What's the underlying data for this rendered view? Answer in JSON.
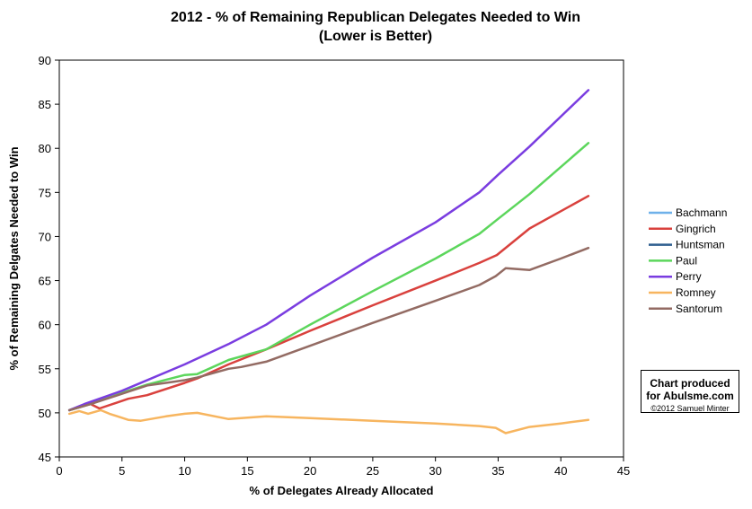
{
  "chart_data": {
    "type": "line",
    "title": "2012 - % of Remaining Republican Delegates Needed to Win",
    "subtitle": "(Lower is Better)",
    "xlabel": "% of Delegates Already Allocated",
    "ylabel": "% of Remaining Delgates Needed to Win",
    "xlim": [
      0,
      45
    ],
    "ylim": [
      45,
      90
    ],
    "xticks": [
      0,
      5,
      10,
      15,
      20,
      25,
      30,
      35,
      40,
      45
    ],
    "yticks": [
      45,
      50,
      55,
      60,
      65,
      70,
      75,
      80,
      85,
      90
    ],
    "grid": false,
    "legend_position": "right",
    "series": [
      {
        "name": "Bachmann",
        "color": "#6fb1ea",
        "points": [
          [
            0.8,
            50.3
          ],
          [
            1.2,
            50.5
          ]
        ]
      },
      {
        "name": "Gingrich",
        "color": "#d9413d",
        "points": [
          [
            0.8,
            50.3
          ],
          [
            2.5,
            51.0
          ],
          [
            3.2,
            50.5
          ],
          [
            5.5,
            51.6
          ],
          [
            7.0,
            52.0
          ],
          [
            10.0,
            53.4
          ],
          [
            11.0,
            53.9
          ],
          [
            13.5,
            55.5
          ],
          [
            16.5,
            57.2
          ],
          [
            20.0,
            59.3
          ],
          [
            25.0,
            62.2
          ],
          [
            30.0,
            65.0
          ],
          [
            33.5,
            67.0
          ],
          [
            34.9,
            67.9
          ],
          [
            37.5,
            70.9
          ],
          [
            42.2,
            74.6
          ]
        ]
      },
      {
        "name": "Huntsman",
        "color": "#2f5f8f",
        "points": [
          [
            0.8,
            50.3
          ],
          [
            1.2,
            50.5
          ]
        ]
      },
      {
        "name": "Paul",
        "color": "#5cd65c",
        "points": [
          [
            0.8,
            50.3
          ],
          [
            2.5,
            51.0
          ],
          [
            5.5,
            52.5
          ],
          [
            7.0,
            53.2
          ],
          [
            10.0,
            54.3
          ],
          [
            11.0,
            54.4
          ],
          [
            13.5,
            56.0
          ],
          [
            16.5,
            57.2
          ],
          [
            20.0,
            60.0
          ],
          [
            25.0,
            63.8
          ],
          [
            30.0,
            67.5
          ],
          [
            33.5,
            70.3
          ],
          [
            35.0,
            72.0
          ],
          [
            37.5,
            74.8
          ],
          [
            42.2,
            80.6
          ]
        ]
      },
      {
        "name": "Perry",
        "color": "#7a3de0",
        "points": [
          [
            0.8,
            50.3
          ],
          [
            2.0,
            51.0
          ],
          [
            5.0,
            52.5
          ],
          [
            10.0,
            55.5
          ],
          [
            13.5,
            57.8
          ],
          [
            16.5,
            60.0
          ],
          [
            20.0,
            63.3
          ],
          [
            25.0,
            67.6
          ],
          [
            30.0,
            71.6
          ],
          [
            33.5,
            75.0
          ],
          [
            35.0,
            77.0
          ],
          [
            37.5,
            80.2
          ],
          [
            42.2,
            86.6
          ]
        ]
      },
      {
        "name": "Romney",
        "color": "#f7b55f",
        "points": [
          [
            0.8,
            49.9
          ],
          [
            1.6,
            50.2
          ],
          [
            2.3,
            49.9
          ],
          [
            3.3,
            50.3
          ],
          [
            4.0,
            49.9
          ],
          [
            5.5,
            49.2
          ],
          [
            6.5,
            49.1
          ],
          [
            8.5,
            49.6
          ],
          [
            10.0,
            49.9
          ],
          [
            11.0,
            50.0
          ],
          [
            13.5,
            49.3
          ],
          [
            14.5,
            49.4
          ],
          [
            16.5,
            49.6
          ],
          [
            20.0,
            49.4
          ],
          [
            25.0,
            49.1
          ],
          [
            30.0,
            48.8
          ],
          [
            33.5,
            48.5
          ],
          [
            34.8,
            48.3
          ],
          [
            35.6,
            47.7
          ],
          [
            37.5,
            48.4
          ],
          [
            40.0,
            48.8
          ],
          [
            42.2,
            49.2
          ]
        ]
      },
      {
        "name": "Santorum",
        "color": "#936b63",
        "points": [
          [
            0.8,
            50.3
          ],
          [
            2.5,
            51.0
          ],
          [
            5.5,
            52.4
          ],
          [
            7.0,
            53.1
          ],
          [
            8.5,
            53.4
          ],
          [
            10.0,
            53.7
          ],
          [
            11.0,
            54.0
          ],
          [
            13.5,
            55.0
          ],
          [
            14.5,
            55.2
          ],
          [
            16.5,
            55.8
          ],
          [
            20.0,
            57.6
          ],
          [
            25.0,
            60.2
          ],
          [
            30.0,
            62.7
          ],
          [
            33.5,
            64.5
          ],
          [
            34.8,
            65.5
          ],
          [
            35.6,
            66.4
          ],
          [
            37.5,
            66.2
          ],
          [
            40.0,
            67.5
          ],
          [
            42.2,
            68.7
          ]
        ]
      }
    ]
  },
  "credit": {
    "line1": "Chart produced",
    "line2": "for Abulsme.com",
    "line3": "©2012 Samuel Minter"
  }
}
